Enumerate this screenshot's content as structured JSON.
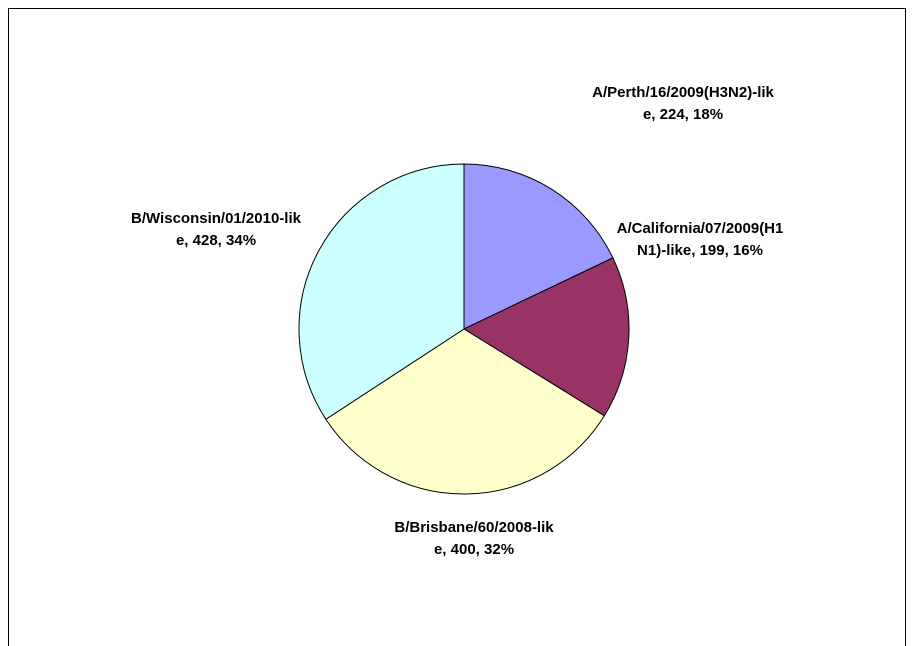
{
  "chart_data": {
    "type": "pie",
    "values": [
      224,
      199,
      400,
      428
    ],
    "value_labels": [
      "A/Perth/16/2009(H3N2)-like, 224, 18%",
      "A/California/07/2009(H1N1)-like, 199, 16%",
      "B/Brisbane/60/2008-like, 400, 32%",
      "B/Wisconsin/01/2010-like, 428, 34%"
    ],
    "colors": [
      "#9999ff",
      "#993366",
      "#ffffcc",
      "#ccffff"
    ]
  }
}
